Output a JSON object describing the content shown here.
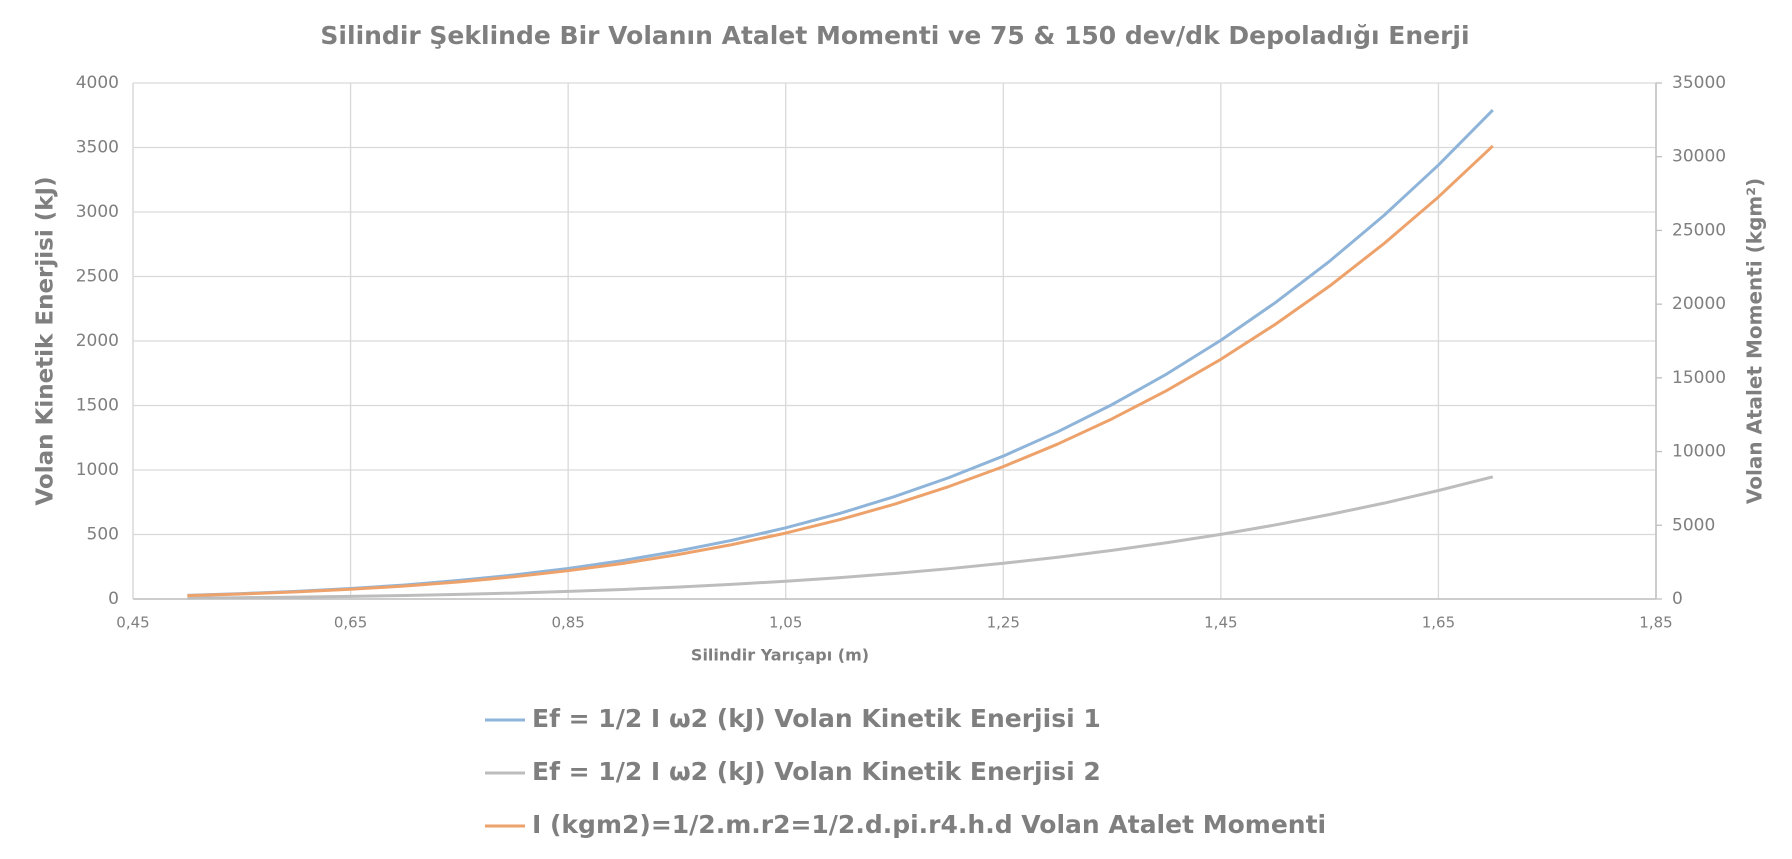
{
  "chart_data": {
    "type": "line",
    "title": "Silindir Şeklinde Bir Volanın Atalet Momenti ve  75 & 150 dev/dk  Depoladığı Enerji",
    "x_label": "Silindir Yarıçapı (m)",
    "y_label": "Volan Kinetik Enerjisi (kJ)",
    "y2_label": "Volan Atalet Momenti (kgm²)",
    "x": [
      0.5,
      0.55,
      0.6,
      0.65,
      0.7,
      0.75,
      0.8,
      0.85,
      0.9,
      0.95,
      1.0,
      1.05,
      1.1,
      1.15,
      1.2,
      1.25,
      1.3,
      1.35,
      1.4,
      1.45,
      1.5,
      1.55,
      1.6,
      1.65,
      1.7
    ],
    "series": [
      {
        "name": "Ef = 1/2 I ω2 (kJ) Volan Kinetik Enerjisi 1",
        "color": "#8fb4d9",
        "values": [
          28,
          42,
          59,
          81,
          109,
          144,
          186,
          237,
          298,
          370,
          454,
          552,
          664,
          794,
          941,
          1108,
          1296,
          1507,
          1743,
          2006,
          2297,
          2619,
          2974,
          3364,
          3790
        ]
      },
      {
        "name": "Ef = 1/2 I ω2 (kJ) Volan Kinetik Enerjisi 2",
        "color": "#bdbdbd",
        "values": [
          7,
          10,
          15,
          20,
          27,
          36,
          46,
          59,
          74,
          92,
          113,
          138,
          166,
          198,
          235,
          277,
          324,
          377,
          436,
          501,
          574,
          655,
          743,
          841,
          947
        ]
      },
      {
        "name": "I (kgm2)=1/2.m.r2=1/2.d.pi.r4.h.d Volan Atalet Momenti",
        "color": "#eea26b",
        "axis": "y2",
        "values": [
          230,
          340,
          480,
          660,
          880,
          1160,
          1510,
          1920,
          2410,
          3000,
          3680,
          4470,
          5390,
          6430,
          7630,
          8980,
          10510,
          12220,
          14130,
          16260,
          18630,
          21230,
          24110,
          27270,
          30730
        ]
      }
    ],
    "xlim": [
      0.45,
      1.85
    ],
    "xticks": [
      {
        "value": 0.45,
        "label": "0,45"
      },
      {
        "value": 0.65,
        "label": "0,65"
      },
      {
        "value": 0.85,
        "label": "0,85"
      },
      {
        "value": 1.05,
        "label": "1,05"
      },
      {
        "value": 1.25,
        "label": "1,25"
      },
      {
        "value": 1.45,
        "label": "1,45"
      },
      {
        "value": 1.65,
        "label": "1,65"
      },
      {
        "value": 1.85,
        "label": "1,85"
      }
    ],
    "ylim": [
      0,
      4000
    ],
    "yticks": [
      0,
      500,
      1000,
      1500,
      2000,
      2500,
      3000,
      3500,
      4000
    ],
    "y2lim": [
      0,
      35000
    ],
    "y2ticks": [
      0,
      5000,
      10000,
      15000,
      20000,
      25000,
      30000,
      35000
    ],
    "grid": true,
    "legend": "bottom"
  }
}
